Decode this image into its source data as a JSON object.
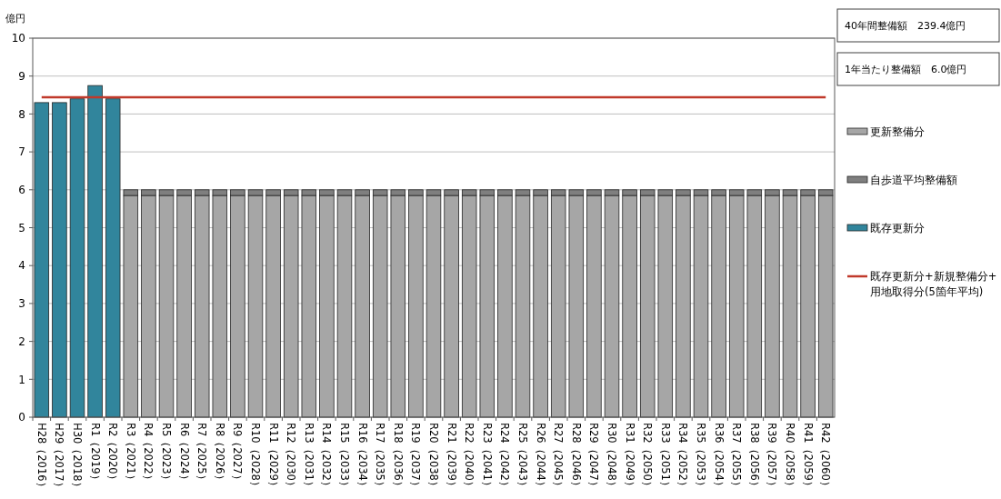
{
  "chart_data": {
    "type": "bar",
    "stacked": true,
    "ylabel": "億円",
    "categories": [
      "H28（2016）",
      "H29（2017）",
      "H30（2018）",
      "R1（2019）",
      "R2（2020）",
      "R3（2021）",
      "R4（2022）",
      "R5（2023）",
      "R6（2024）",
      "R7（2025）",
      "R8（2026）",
      "R9（2027）",
      "R10（2028）",
      "R11（2029）",
      "R12（2030）",
      "R13（2031）",
      "R14（2032）",
      "R15（2033）",
      "R16（2034）",
      "R17（2035）",
      "R18（2036）",
      "R19（2037）",
      "R20（2038）",
      "R21（2039）",
      "R22（2040）",
      "R23（2041）",
      "R24（2042）",
      "R25（2043）",
      "R26（2044）",
      "R27（2045）",
      "R28（2046）",
      "R29（2047）",
      "R30（2048）",
      "R31（2049）",
      "R32（2050）",
      "R33（2051）",
      "R34（2052）",
      "R35（2053）",
      "R36（2054）",
      "R37（2055）",
      "R38（2056）",
      "R39（2057）",
      "R40（2058）",
      "R41（2059）",
      "R42（2060）"
    ],
    "series": [
      {
        "name": "更新整備分",
        "color": "#a6a6a6",
        "values": [
          null,
          null,
          null,
          null,
          null,
          5.85,
          5.85,
          5.85,
          5.85,
          5.85,
          5.85,
          5.85,
          5.85,
          5.85,
          5.85,
          5.85,
          5.85,
          5.85,
          5.85,
          5.85,
          5.85,
          5.85,
          5.85,
          5.85,
          5.85,
          5.85,
          5.85,
          5.85,
          5.85,
          5.85,
          5.85,
          5.85,
          5.85,
          5.85,
          5.85,
          5.85,
          5.85,
          5.85,
          5.85,
          5.85,
          5.85,
          5.85,
          5.85,
          5.85,
          5.85
        ]
      },
      {
        "name": "自歩道平均整備額",
        "color": "#7f7f7f",
        "values": [
          null,
          null,
          null,
          null,
          null,
          0.15,
          0.15,
          0.15,
          0.15,
          0.15,
          0.15,
          0.15,
          0.15,
          0.15,
          0.15,
          0.15,
          0.15,
          0.15,
          0.15,
          0.15,
          0.15,
          0.15,
          0.15,
          0.15,
          0.15,
          0.15,
          0.15,
          0.15,
          0.15,
          0.15,
          0.15,
          0.15,
          0.15,
          0.15,
          0.15,
          0.15,
          0.15,
          0.15,
          0.15,
          0.15,
          0.15,
          0.15,
          0.15,
          0.15,
          0.15
        ]
      },
      {
        "name": "既存更新分",
        "color": "#31859c",
        "values": [
          8.3,
          8.3,
          8.4,
          8.75,
          8.4,
          null,
          null,
          null,
          null,
          null,
          null,
          null,
          null,
          null,
          null,
          null,
          null,
          null,
          null,
          null,
          null,
          null,
          null,
          null,
          null,
          null,
          null,
          null,
          null,
          null,
          null,
          null,
          null,
          null,
          null,
          null,
          null,
          null,
          null,
          null,
          null,
          null,
          null,
          null,
          null
        ]
      },
      {
        "name": "既存更新分+新規整備分+用地取得分(5箇年平均)",
        "type": "line",
        "color": "#c0392b",
        "values": [
          8.44,
          8.44,
          8.44,
          8.44,
          8.44,
          8.44,
          8.44,
          8.44,
          8.44,
          8.44,
          8.44,
          8.44,
          8.44,
          8.44,
          8.44,
          8.44,
          8.44,
          8.44,
          8.44,
          8.44,
          8.44,
          8.44,
          8.44,
          8.44,
          8.44,
          8.44,
          8.44,
          8.44,
          8.44,
          8.44,
          8.44,
          8.44,
          8.44,
          8.44,
          8.44,
          8.44,
          8.44,
          8.44,
          8.44,
          8.44,
          8.44,
          8.44,
          8.44,
          8.44,
          8.44
        ]
      }
    ],
    "ylim": [
      0,
      10
    ],
    "yticks": [
      0,
      1,
      2,
      3,
      4,
      5,
      6,
      7,
      8,
      9,
      10
    ],
    "grid": "y",
    "legend": "right",
    "marker": "none",
    "line_style": "solid",
    "annotations": [
      "40年間整備額　239.4億円",
      "1年当たり整備額　6.0億円"
    ]
  }
}
